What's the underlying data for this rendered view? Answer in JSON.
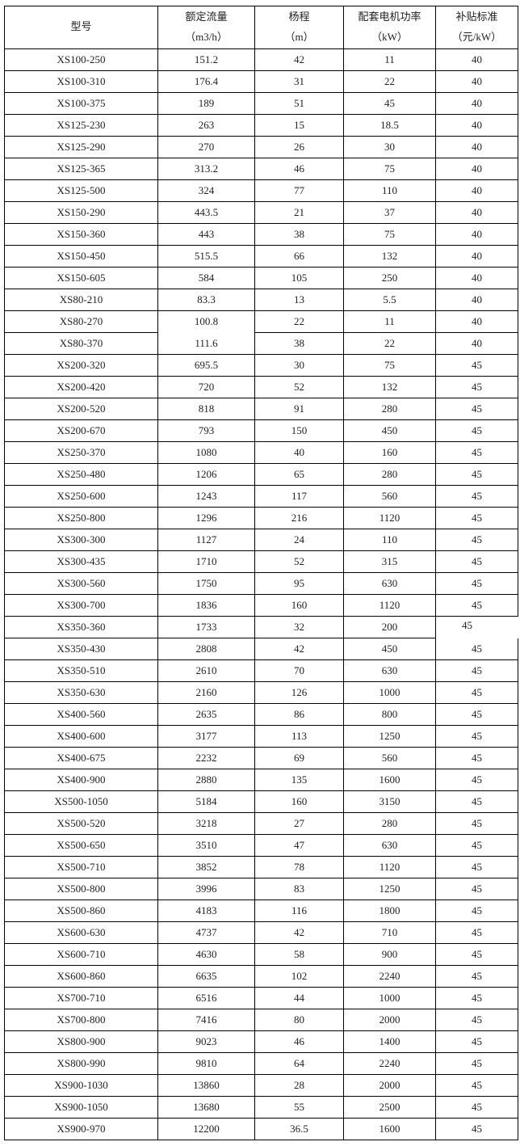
{
  "headers": [
    {
      "title": "型号",
      "unit": ""
    },
    {
      "title": "额定流量",
      "unit": "（m3/h）"
    },
    {
      "title": "杨程",
      "unit": "（m）"
    },
    {
      "title": "配套电机功率",
      "unit": "（kW）"
    },
    {
      "title": "补贴标准",
      "unit": "（元/kW）"
    }
  ],
  "rows": [
    [
      "XS100-250",
      "151.2",
      "42",
      "11",
      "40"
    ],
    [
      "XS100-310",
      "176.4",
      "31",
      "22",
      "40"
    ],
    [
      "XS100-375",
      "189",
      "51",
      "45",
      "40"
    ],
    [
      "XS125-230",
      "263",
      "15",
      "18.5",
      "40"
    ],
    [
      "XS125-290",
      "270",
      "26",
      "30",
      "40"
    ],
    [
      "XS125-365",
      "313.2",
      "46",
      "75",
      "40"
    ],
    [
      "XS125-500",
      "324",
      "77",
      "110",
      "40"
    ],
    [
      "XS150-290",
      "443.5",
      "21",
      "37",
      "40"
    ],
    [
      "XS150-360",
      "443",
      "38",
      "75",
      "40"
    ],
    [
      "XS150-450",
      "515.5",
      "66",
      "132",
      "40"
    ],
    [
      "XS150-605",
      "584",
      "105",
      "250",
      "40"
    ],
    [
      "XS80-210",
      "83.3",
      "13",
      "5.5",
      "40"
    ],
    [
      "XS80-270",
      "100.8",
      "22",
      "11",
      "40"
    ],
    [
      "XS80-370",
      "111.6",
      "38",
      "22",
      "40"
    ],
    [
      "XS200-320",
      "695.5",
      "30",
      "75",
      "45"
    ],
    [
      "XS200-420",
      "720",
      "52",
      "132",
      "45"
    ],
    [
      "XS200-520",
      "818",
      "91",
      "280",
      "45"
    ],
    [
      "XS200-670",
      "793",
      "150",
      "450",
      "45"
    ],
    [
      "XS250-370",
      "1080",
      "40",
      "160",
      "45"
    ],
    [
      "XS250-480",
      "1206",
      "65",
      "280",
      "45"
    ],
    [
      "XS250-600",
      "1243",
      "117",
      "560",
      "45"
    ],
    [
      "XS250-800",
      "1296",
      "216",
      "1120",
      "45"
    ],
    [
      "XS300-300",
      "1127",
      "24",
      "110",
      "45"
    ],
    [
      "XS300-435",
      "1710",
      "52",
      "315",
      "45"
    ],
    [
      "XS300-560",
      "1750",
      "95",
      "630",
      "45"
    ],
    [
      "XS300-700",
      "1836",
      "160",
      "1120",
      "45"
    ],
    [
      "XS350-360",
      "1733",
      "32",
      "200",
      "45"
    ],
    [
      "XS350-430",
      "2808",
      "42",
      "450",
      "45"
    ],
    [
      "XS350-510",
      "2610",
      "70",
      "630",
      "45"
    ],
    [
      "XS350-630",
      "2160",
      "126",
      "1000",
      "45"
    ],
    [
      "XS400-560",
      "2635",
      "86",
      "800",
      "45"
    ],
    [
      "XS400-600",
      "3177",
      "113",
      "1250",
      "45"
    ],
    [
      "XS400-675",
      "2232",
      "69",
      "560",
      "45"
    ],
    [
      "XS400-900",
      "2880",
      "135",
      "1600",
      "45"
    ],
    [
      "XS500-1050",
      "5184",
      "160",
      "3150",
      "45"
    ],
    [
      "XS500-520",
      "3218",
      "27",
      "280",
      "45"
    ],
    [
      "XS500-650",
      "3510",
      "47",
      "630",
      "45"
    ],
    [
      "XS500-710",
      "3852",
      "78",
      "1120",
      "45"
    ],
    [
      "XS500-800",
      "3996",
      "83",
      "1250",
      "45"
    ],
    [
      "XS500-860",
      "4183",
      "116",
      "1800",
      "45"
    ],
    [
      "XS600-630",
      "4737",
      "42",
      "710",
      "45"
    ],
    [
      "XS600-710",
      "4630",
      "58",
      "900",
      "45"
    ],
    [
      "XS600-860",
      "6635",
      "102",
      "2240",
      "45"
    ],
    [
      "XS700-710",
      "6516",
      "44",
      "1000",
      "45"
    ],
    [
      "XS700-800",
      "7416",
      "80",
      "2000",
      "45"
    ],
    [
      "XS800-900",
      "9023",
      "46",
      "1400",
      "45"
    ],
    [
      "XS800-990",
      "9810",
      "64",
      "2240",
      "45"
    ],
    [
      "XS900-1030",
      "13860",
      "28",
      "2000",
      "45"
    ],
    [
      "XS900-1050",
      "13680",
      "55",
      "2500",
      "45"
    ],
    [
      "XS900-970",
      "12200",
      "36.5",
      "1600",
      "45"
    ]
  ]
}
